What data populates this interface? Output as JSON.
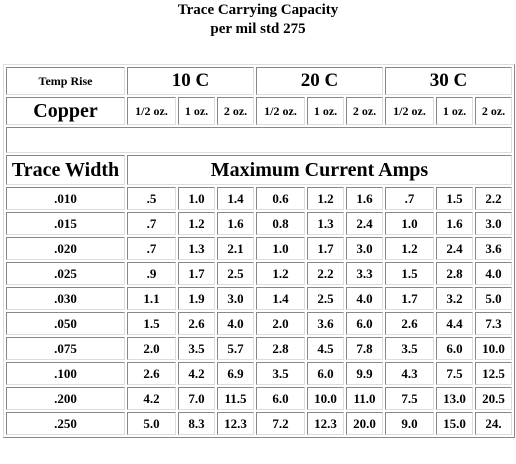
{
  "title": [
    "Trace Carrying Capacity",
    "per mil std 275"
  ],
  "header": {
    "label": "Temp Rise",
    "groups": [
      "10 C",
      "20 C",
      "30 C"
    ]
  },
  "subheader": {
    "label": "Copper",
    "weights": [
      "1/2 oz.",
      "1 oz.",
      "2 oz.",
      "1/2 oz.",
      "1 oz.",
      "2 oz.",
      "1/2 oz.",
      "1 oz.",
      "2 oz."
    ]
  },
  "columns": {
    "label": "Trace Width",
    "span": "Maximum Current Amps"
  },
  "rows": [
    [
      ".010",
      ".5",
      "1.0",
      "1.4",
      "0.6",
      "1.2",
      "1.6",
      ".7",
      "1.5",
      "2.2"
    ],
    [
      ".015",
      ".7",
      "1.2",
      "1.6",
      "0.8",
      "1.3",
      "2.4",
      "1.0",
      "1.6",
      "3.0"
    ],
    [
      ".020",
      ".7",
      "1.3",
      "2.1",
      "1.0",
      "1.7",
      "3.0",
      "1.2",
      "2.4",
      "3.6"
    ],
    [
      ".025",
      ".9",
      "1.7",
      "2.5",
      "1.2",
      "2.2",
      "3.3",
      "1.5",
      "2.8",
      "4.0"
    ],
    [
      ".030",
      "1.1",
      "1.9",
      "3.0",
      "1.4",
      "2.5",
      "4.0",
      "1.7",
      "3.2",
      "5.0"
    ],
    [
      ".050",
      "1.5",
      "2.6",
      "4.0",
      "2.0",
      "3.6",
      "6.0",
      "2.6",
      "4.4",
      "7.3"
    ],
    [
      ".075",
      "2.0",
      "3.5",
      "5.7",
      "2.8",
      "4.5",
      "7.8",
      "3.5",
      "6.0",
      "10.0"
    ],
    [
      ".100",
      "2.6",
      "4.2",
      "6.9",
      "3.5",
      "6.0",
      "9.9",
      "4.3",
      "7.5",
      "12.5"
    ],
    [
      ".200",
      "4.2",
      "7.0",
      "11.5",
      "6.0",
      "10.0",
      "11.0",
      "7.5",
      "13.0",
      "20.5"
    ],
    [
      ".250",
      "5.0",
      "8.3",
      "12.3",
      "7.2",
      "12.3",
      "20.0",
      "9.0",
      "15.0",
      "24."
    ]
  ]
}
